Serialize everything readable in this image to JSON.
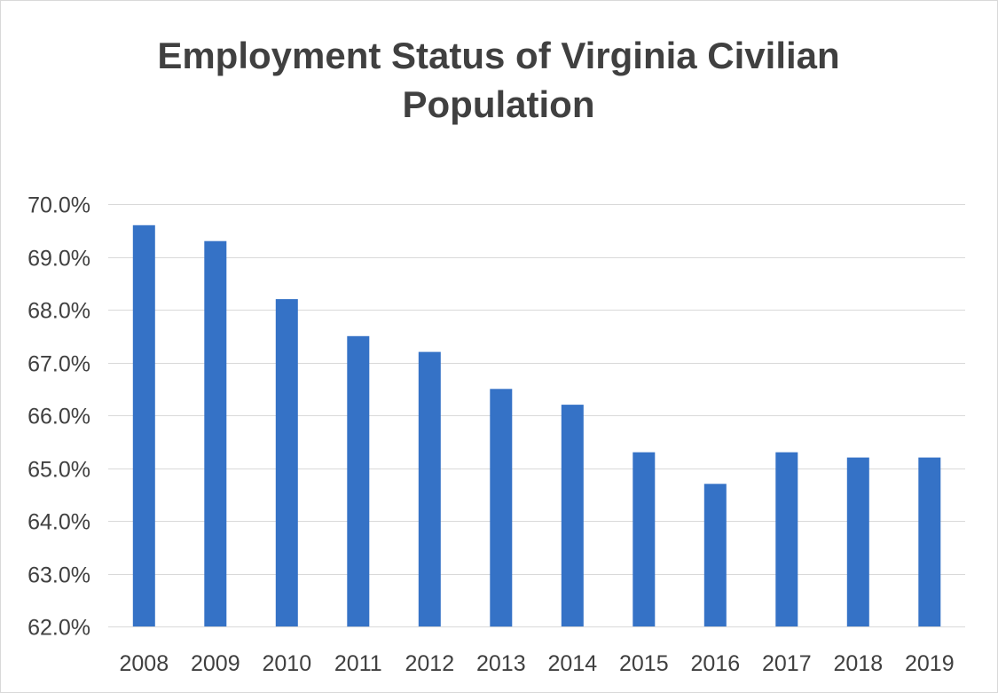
{
  "chart_data": {
    "type": "bar",
    "title_lines": [
      "Employment Status of Virginia Civilian",
      "Population"
    ],
    "categories": [
      "2008",
      "2009",
      "2010",
      "2011",
      "2012",
      "2013",
      "2014",
      "2015",
      "2016",
      "2017",
      "2018",
      "2019"
    ],
    "values": [
      69.6,
      69.3,
      68.2,
      67.5,
      67.2,
      66.5,
      66.2,
      65.3,
      64.7,
      65.3,
      65.2,
      65.2
    ],
    "value_unit": "%",
    "ylim": [
      62,
      70
    ],
    "ytick_labels": [
      "62.0%",
      "63.0%",
      "64.0%",
      "65.0%",
      "66.0%",
      "67.0%",
      "68.0%",
      "69.0%",
      "70.0%"
    ],
    "xlabel": "",
    "ylabel": "",
    "grid": true,
    "legend": "none",
    "colors": {
      "bar": "#3572c6",
      "gridline": "#d9d9d9",
      "text": "#404040"
    }
  }
}
